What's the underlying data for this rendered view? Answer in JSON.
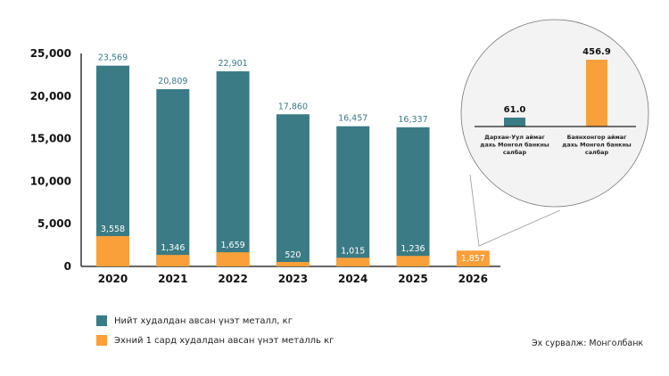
{
  "colors": {
    "total": "#3a7b85",
    "first_month": "#f9a03a",
    "axis": "#333333",
    "inset_bg": "#f3f3f3"
  },
  "chart_data": [
    {
      "type": "bar",
      "stacking": "overlay",
      "categories": [
        "2020",
        "2021",
        "2022",
        "2023",
        "2024",
        "2025",
        "2026"
      ],
      "series": [
        {
          "name": "Нийт худалдан авсан үнэт металл, кг",
          "values": [
            23569,
            20809,
            22901,
            17860,
            16457,
            16337,
            null
          ],
          "labels": [
            "23,569",
            "20,809",
            "22,901",
            "17,860",
            "16,457",
            "16,337",
            ""
          ]
        },
        {
          "name": "Эхний 1 сард худалдан авсан үнэт металль кг",
          "values": [
            3558,
            1346,
            1659,
            520,
            1015,
            1236,
            1857
          ],
          "labels": [
            "3,558",
            "1,346",
            "1,659",
            "520",
            "1,015",
            "1,236",
            "1,857"
          ]
        }
      ],
      "yticks": [
        "0",
        "5,000",
        "10,000",
        "15,000",
        "20,000",
        "25,000"
      ],
      "ytick_values": [
        0,
        5000,
        10000,
        15000,
        20000,
        25000
      ],
      "ylim": [
        0,
        25000
      ],
      "grid": false,
      "legend": "bottom-left"
    },
    {
      "type": "bar",
      "categories": [
        "Дархан-Уул аймаг дахь Монгол банкны салбар",
        "Баянхонгор аймаг дахь Монгол банкны салбар"
      ],
      "category_lines": [
        [
          "Дархан-Уул аймаг",
          "дахь Монгол банкны",
          "салбар"
        ],
        [
          "Баянхонгор аймаг",
          "дахь Монгол банкны",
          "салбар"
        ]
      ],
      "values": [
        61.0,
        456.9
      ],
      "labels": [
        "61.0",
        "456.9"
      ],
      "bar_colors": [
        "#3a7b85",
        "#f9a03a"
      ],
      "ylim": [
        0,
        456.9
      ],
      "callout_from": "2026"
    }
  ],
  "legend": {
    "items": [
      {
        "label": "Нийт худалдан авсан үнэт металл, кг",
        "color": "#3a7b85"
      },
      {
        "label": "Эхний 1 сард худалдан авсан үнэт металль кг",
        "color": "#f9a03a"
      }
    ]
  },
  "source": "Эх сурвалж: Монголбанк"
}
